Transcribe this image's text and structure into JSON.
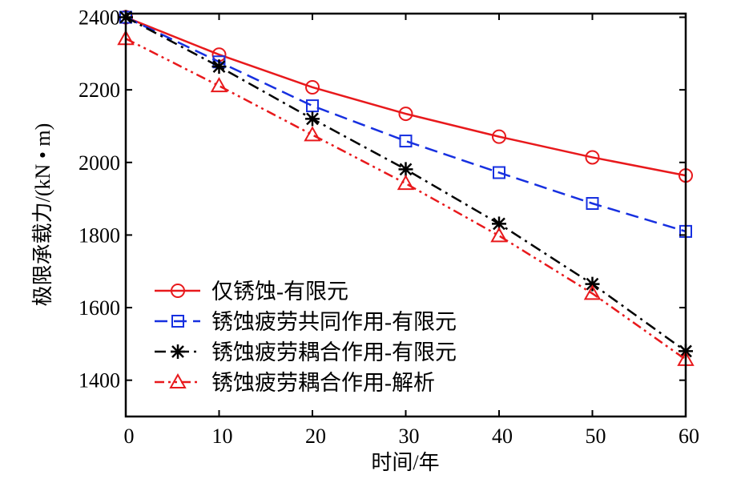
{
  "chart_data": {
    "type": "line",
    "title": "",
    "xlabel": "时间/年",
    "ylabel": "极限承载力/(kN • m)",
    "xlim": [
      0,
      60
    ],
    "ylim": [
      1300,
      2410
    ],
    "xticks": [
      0,
      10,
      20,
      30,
      40,
      50,
      60
    ],
    "yticks": [
      1400,
      1600,
      1800,
      2000,
      2200,
      2400
    ],
    "x": [
      0,
      10,
      20,
      30,
      40,
      50,
      60
    ],
    "legend_position": "bottom-left",
    "grid": false,
    "series": [
      {
        "name": "仅锈蚀-有限元",
        "color": "#e8191c",
        "marker": "circle",
        "dash": "solid",
        "values": [
          2400,
          2297,
          2207,
          2134,
          2071,
          2014,
          1964
        ]
      },
      {
        "name": "锈蚀疲劳共同作用-有限元",
        "color": "#1730e0",
        "marker": "square",
        "dash": "dashed",
        "values": [
          2400,
          2277,
          2156,
          2059,
          1972,
          1887,
          1810
        ]
      },
      {
        "name": "锈蚀疲劳耦合作用-有限元",
        "color": "#000000",
        "marker": "asterisk",
        "dash": "dashdot",
        "values": [
          2400,
          2264,
          2120,
          1981,
          1831,
          1665,
          1480
        ]
      },
      {
        "name": "锈蚀疲劳耦合作用-解析",
        "color": "#e8191c",
        "marker": "triangle",
        "dash": "dashdotdot",
        "values": [
          2341,
          2211,
          2076,
          1942,
          1798,
          1639,
          1457
        ]
      }
    ]
  }
}
